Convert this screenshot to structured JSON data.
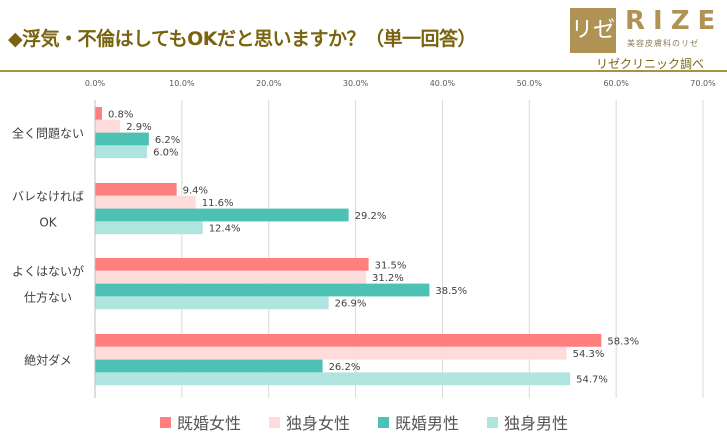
{
  "header": {
    "title": "◆浮気・不倫はしてもOKだと思いますか？（単一回答）",
    "source": "リゼクリニック調べ"
  },
  "logo": {
    "mark": "リゼ",
    "word": "RIZE",
    "sub": "美容皮膚科のリゼ"
  },
  "chart_data": {
    "type": "bar",
    "orientation": "horizontal",
    "title": "◆浮気・不倫はしてもOKだと思いますか？（単一回答）",
    "categories": [
      "全く問題ない",
      "バレなければOK",
      "よくはないが仕方ない",
      "絶対ダメ"
    ],
    "category_lines": [
      [
        "全く問題ない"
      ],
      [
        "バレなければ",
        "OK"
      ],
      [
        "よくはないが",
        "仕方ない"
      ],
      [
        "絶対ダメ"
      ]
    ],
    "series": [
      {
        "name": "既婚女性",
        "color": "#ff7f7f",
        "values": [
          0.8,
          9.4,
          31.5,
          58.3
        ]
      },
      {
        "name": "独身女性",
        "color": "#ffdcdc",
        "values": [
          2.9,
          11.6,
          31.2,
          54.3
        ]
      },
      {
        "name": "既婚男性",
        "color": "#4dc1b3",
        "values": [
          6.2,
          29.2,
          38.5,
          26.2
        ]
      },
      {
        "name": "独身男性",
        "color": "#b0e4df",
        "values": [
          6.0,
          12.4,
          26.9,
          54.7
        ]
      }
    ],
    "xlim": [
      0,
      70
    ],
    "ticks": [
      "0.0%",
      "10.0%",
      "20.0%",
      "30.0%",
      "40.0%",
      "50.0%",
      "60.0%",
      "70.0%"
    ],
    "grid": true,
    "legend": "bottom"
  }
}
